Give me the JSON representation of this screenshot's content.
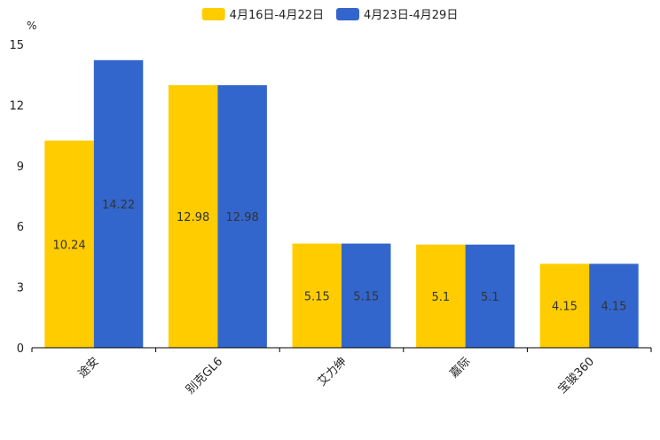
{
  "chart_data": {
    "type": "bar",
    "title": "",
    "unit": "%",
    "xlabel": "",
    "ylabel": "%",
    "ylim": [
      0,
      15
    ],
    "yticks": [
      0,
      3,
      6,
      9,
      12,
      15
    ],
    "grid": false,
    "legend_position": "top-center",
    "categories": [
      "途安",
      "别克GL6",
      "艾力绅",
      "嘉际",
      "宝骏360"
    ],
    "series": [
      {
        "name": "4月16日-4月22日",
        "color": "#FFCC00",
        "values": [
          10.24,
          12.98,
          5.15,
          5.1,
          4.15
        ],
        "labels": [
          "10.24",
          "12.98",
          "5.15",
          "5.1",
          "4.15"
        ]
      },
      {
        "name": "4月23日-4月29日",
        "color": "#3366CC",
        "values": [
          14.22,
          12.98,
          5.15,
          5.1,
          4.15
        ],
        "labels": [
          "14.22",
          "12.98",
          "5.15",
          "5.1",
          "4.15"
        ]
      }
    ]
  }
}
